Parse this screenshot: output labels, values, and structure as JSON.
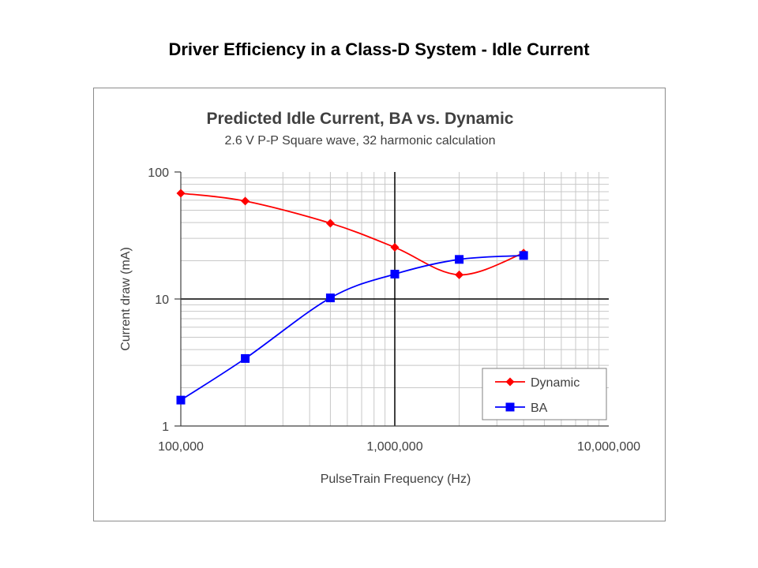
{
  "slide": {
    "title": "Driver Efficiency in a Class-D System - Idle Current"
  },
  "colors": {
    "dynamic": "#ff0000",
    "ba": "#0000ff"
  },
  "chart_data": {
    "type": "line",
    "title": "Predicted Idle Current, BA vs. Dynamic",
    "subtitle": "2.6 V P-P Square wave, 32 harmonic calculation",
    "xlabel": "PulseTrain Frequency (Hz)",
    "ylabel": "Current draw (mA)",
    "xscale": "log",
    "yscale": "log",
    "xlim": [
      100000,
      10000000
    ],
    "ylim": [
      1,
      100
    ],
    "xticks": [
      {
        "value": 100000,
        "label": "100,000"
      },
      {
        "value": 1000000,
        "label": "1,000,000"
      },
      {
        "value": 10000000,
        "label": "10,000,000"
      }
    ],
    "yticks": [
      {
        "value": 1,
        "label": "1"
      },
      {
        "value": 10,
        "label": "10"
      },
      {
        "value": 100,
        "label": "100"
      }
    ],
    "grid": true,
    "legend_position": "bottom-right",
    "series": [
      {
        "name": "Dynamic",
        "marker": "diamond",
        "color": "#ff0000",
        "x": [
          100000,
          200000,
          500000,
          1000000,
          2000000,
          4000000
        ],
        "y": [
          68,
          59,
          39.5,
          25.5,
          15.5,
          23
        ]
      },
      {
        "name": "BA",
        "marker": "square",
        "color": "#0000ff",
        "x": [
          100000,
          200000,
          500000,
          1000000,
          2000000,
          4000000
        ],
        "y": [
          1.6,
          3.4,
          10.2,
          15.7,
          20.5,
          22
        ]
      }
    ]
  }
}
